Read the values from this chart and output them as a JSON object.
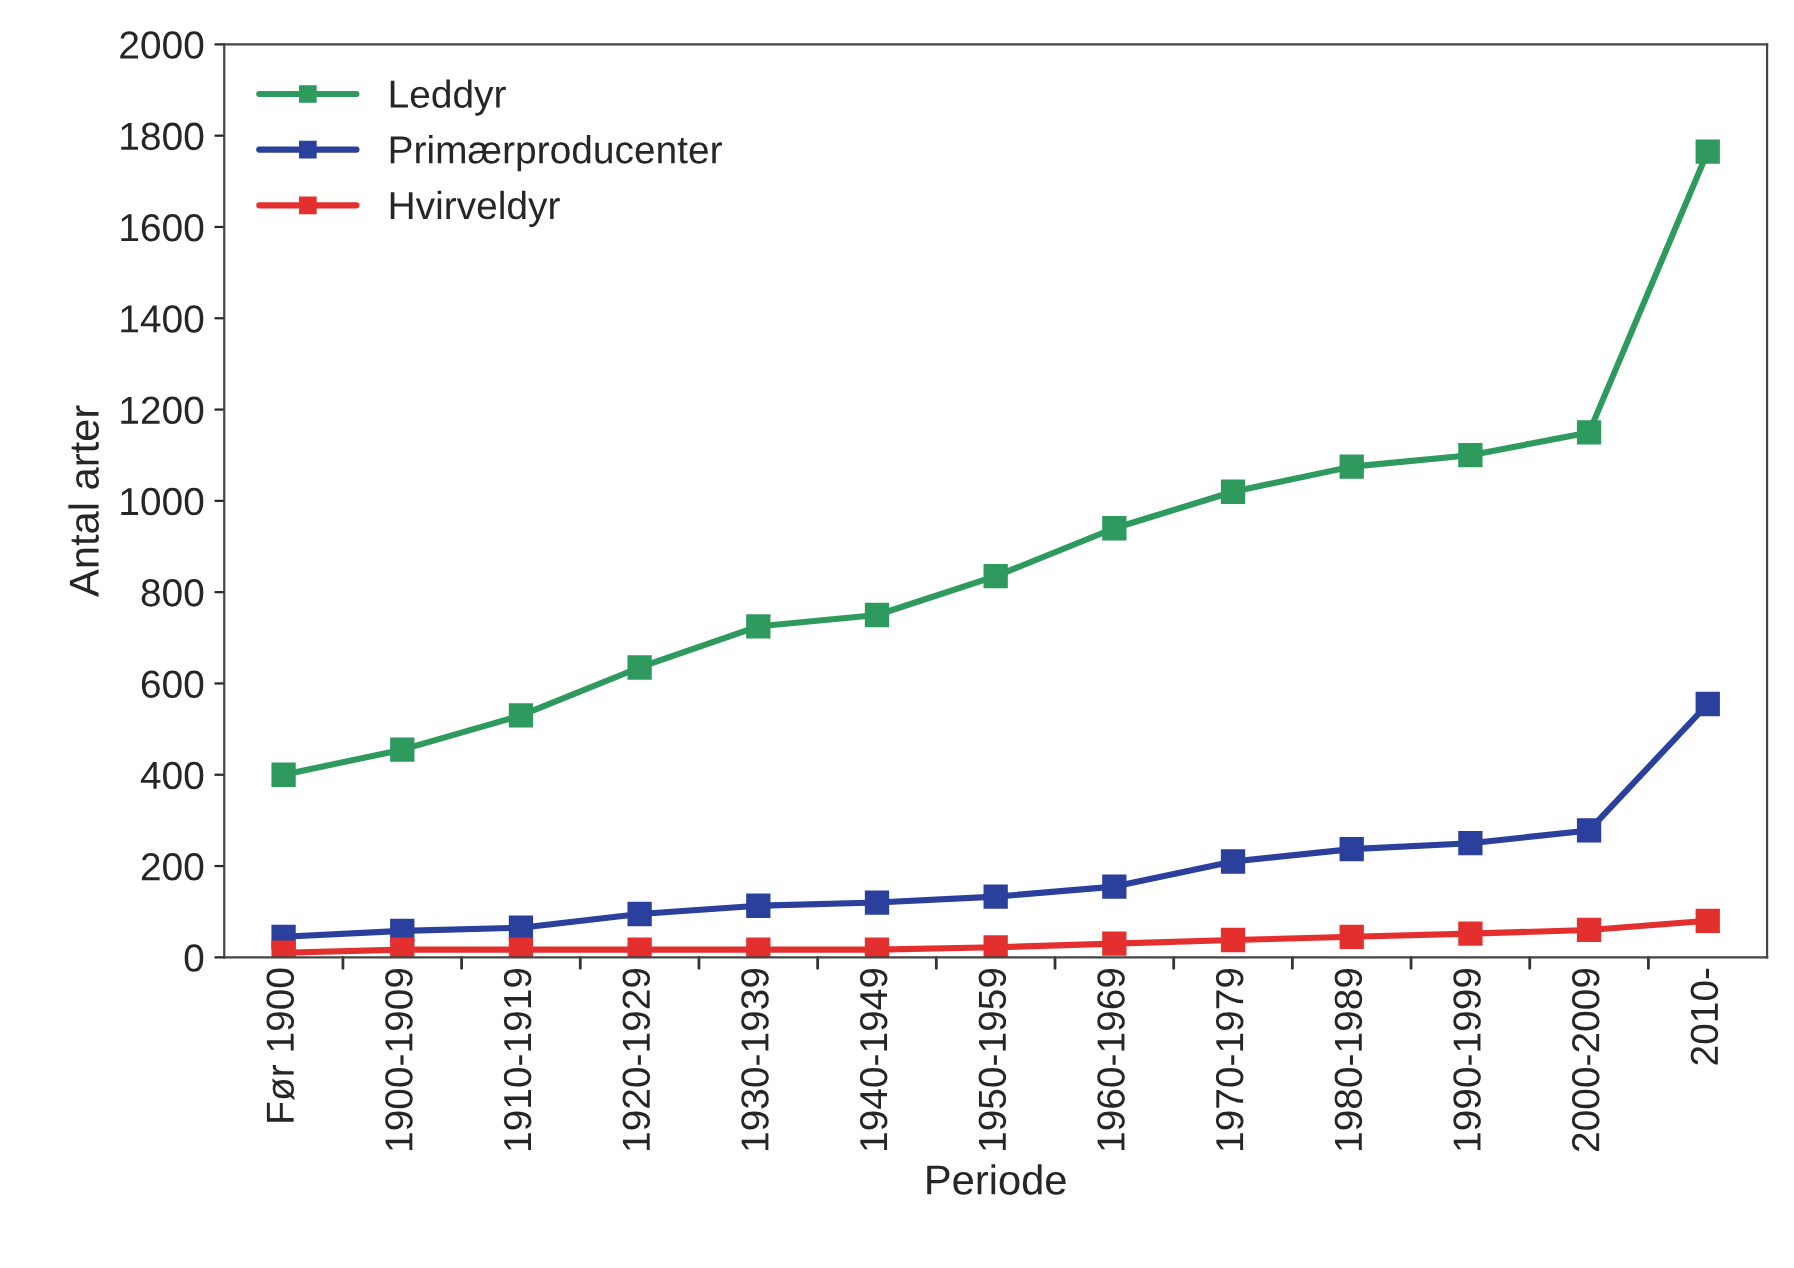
{
  "chart_data": {
    "type": "line",
    "xlabel": "Periode",
    "ylabel": "Antal arter",
    "categories": [
      "Før 1900",
      "1900-1909",
      "1910-1919",
      "1920-1929",
      "1930-1939",
      "1940-1949",
      "1950-1959",
      "1960-1969",
      "1970-1979",
      "1980-1989",
      "1990-1999",
      "2000-2009",
      "2010-"
    ],
    "series": [
      {
        "name": "Leddyr",
        "color": "#2e9a5e",
        "values": [
          400,
          455,
          530,
          635,
          725,
          750,
          835,
          940,
          1020,
          1075,
          1100,
          1150,
          1765
        ]
      },
      {
        "name": "Primærproducenter",
        "color": "#2b3f9c",
        "values": [
          45,
          58,
          65,
          95,
          113,
          120,
          133,
          155,
          210,
          237,
          250,
          278,
          555
        ]
      },
      {
        "name": "Hvirveldyr",
        "color": "#e3302f",
        "values": [
          10,
          17,
          17,
          17,
          17,
          17,
          22,
          30,
          38,
          45,
          52,
          60,
          80
        ]
      }
    ],
    "ylim": [
      0,
      2000
    ],
    "yticks": [
      0,
      200,
      400,
      600,
      800,
      1000,
      1200,
      1400,
      1600,
      1800,
      2000
    ],
    "marker": "square",
    "line_style": "solid",
    "legend": "top left",
    "grid": false
  }
}
